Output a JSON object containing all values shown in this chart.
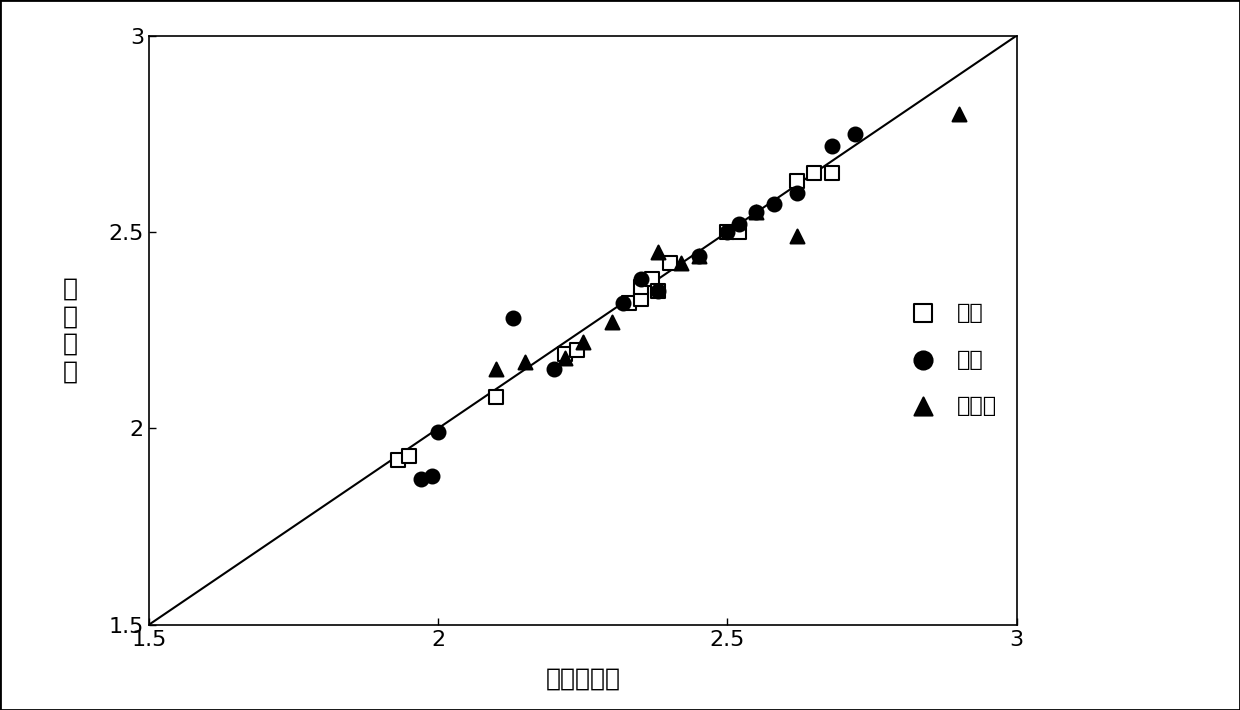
{
  "title": "",
  "xlabel": "地层真密度",
  "ylabel_chars": [
    "计",
    "算",
    "密",
    "度"
  ],
  "xlim": [
    1.5,
    3.0
  ],
  "ylim": [
    1.5,
    3.0
  ],
  "xticks": [
    1.5,
    2.0,
    2.5,
    3.0
  ],
  "yticks": [
    1.5,
    2.0,
    2.5,
    3.0
  ],
  "line_x": [
    1.5,
    3.0
  ],
  "line_y": [
    1.5,
    3.0
  ],
  "sandstone_x": [
    1.93,
    1.95,
    2.1,
    2.22,
    2.24,
    2.33,
    2.35,
    2.35,
    2.37,
    2.38,
    2.4,
    2.5,
    2.52,
    2.62,
    2.65,
    2.68
  ],
  "sandstone_y": [
    1.92,
    1.93,
    2.08,
    2.19,
    2.2,
    2.32,
    2.33,
    2.36,
    2.38,
    2.35,
    2.42,
    2.5,
    2.5,
    2.63,
    2.65,
    2.65
  ],
  "limestone_x": [
    1.97,
    1.99,
    2.0,
    2.13,
    2.2,
    2.32,
    2.35,
    2.38,
    2.45,
    2.5,
    2.52,
    2.55,
    2.58,
    2.62,
    2.68,
    2.72
  ],
  "limestone_y": [
    1.87,
    1.88,
    1.99,
    2.28,
    2.15,
    2.32,
    2.38,
    2.35,
    2.44,
    2.5,
    2.52,
    2.55,
    2.57,
    2.6,
    2.72,
    2.75
  ],
  "dolomite_x": [
    2.1,
    2.15,
    2.22,
    2.25,
    2.3,
    2.38,
    2.42,
    2.45,
    2.55,
    2.62,
    2.9
  ],
  "dolomite_y": [
    2.15,
    2.17,
    2.18,
    2.22,
    2.27,
    2.45,
    2.42,
    2.44,
    2.55,
    2.49,
    2.8
  ],
  "legend_labels": [
    "砂岩",
    "灰岩",
    "白云岩"
  ],
  "marker_size": 100,
  "line_color": "black",
  "sandstone_facecolor": "white",
  "sandstone_edgecolor": "black",
  "limestone_facecolor": "black",
  "limestone_edgecolor": "black",
  "dolomite_facecolor": "black",
  "dolomite_edgecolor": "black",
  "background_color": "white",
  "font_size_label": 18,
  "font_size_tick": 16,
  "font_size_legend": 16
}
